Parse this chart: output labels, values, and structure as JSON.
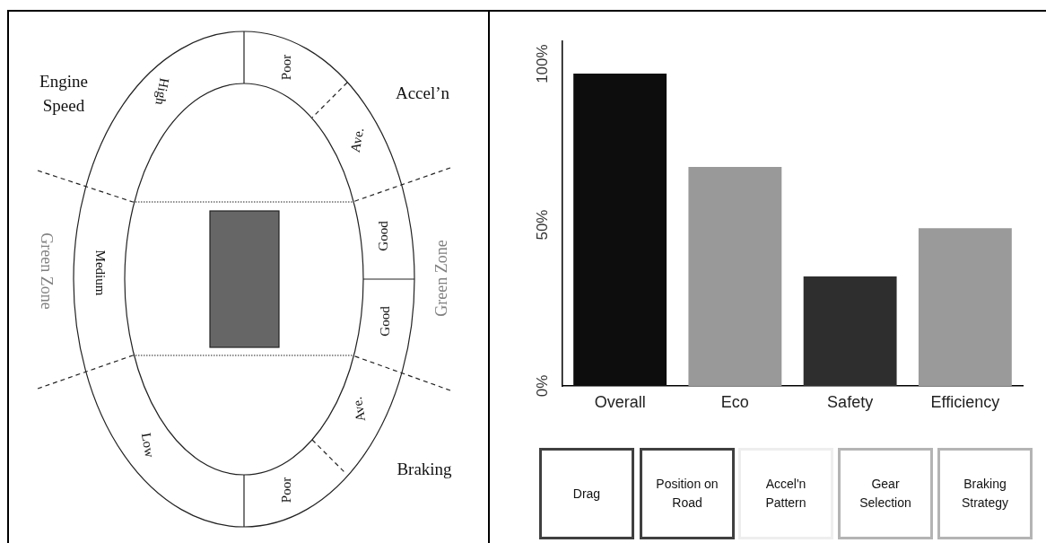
{
  "chart_data": [
    {
      "type": "other",
      "annotations": [
        "Engine Speed",
        "Accel’n",
        "Braking",
        "Green Zone",
        "Green Zone",
        "High",
        "Medium",
        "Low",
        "Poor",
        "Ave.",
        "Good",
        "Good",
        "Ave.",
        "Poor"
      ]
    },
    {
      "type": "bar",
      "categories": [
        "Overall",
        "Eco",
        "Safety",
        "Efficiency"
      ],
      "values": [
        97,
        68,
        34,
        49
      ],
      "colors": [
        "#0d0d0d",
        "#999999",
        "#2e2e2e",
        "#9a9a9a"
      ],
      "ylim": [
        0,
        107
      ],
      "yticks": [
        {
          "value": 0,
          "label": "0%"
        },
        {
          "value": 50,
          "label": "50%"
        },
        {
          "value": 100,
          "label": "100%"
        }
      ],
      "grid": false,
      "legend": false,
      "annotations": [
        "Drag",
        "Position on Road",
        "Accel'n Pattern",
        "Gear Selection",
        "Braking Strategy"
      ]
    }
  ]
}
